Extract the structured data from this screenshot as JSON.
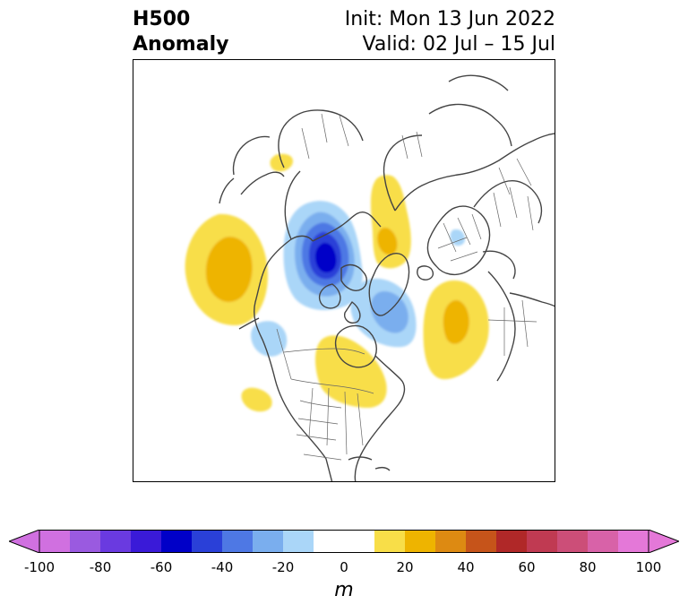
{
  "header": {
    "title_line1": "H500",
    "title_line2": "Anomaly",
    "init_text": "Init: Mon 13 Jun 2022",
    "valid_text": "Valid: 02 Jul – 15 Jul"
  },
  "map": {
    "projection": "polar stereographic, North America centered",
    "anomaly_features": [
      {
        "name": "gulf-of-alaska-ridge",
        "sign": "positive",
        "peak": 30
      },
      {
        "name": "arctic-canada-low",
        "sign": "negative",
        "peak": -60
      },
      {
        "name": "hudson-bay-low",
        "sign": "negative",
        "peak": -30
      },
      {
        "name": "central-canada-great-lakes-ridge",
        "sign": "positive",
        "peak": 20
      },
      {
        "name": "north-atlantic-ridge",
        "sign": "positive",
        "peak": 30
      },
      {
        "name": "western-europe-russia-ridge",
        "sign": "positive",
        "peak": 20
      },
      {
        "name": "pacific-nw-weak-low",
        "sign": "negative",
        "peak": -20
      },
      {
        "name": "southwest-us-weak-ridge",
        "sign": "positive",
        "peak": 20
      },
      {
        "name": "north-africa-weak-ridge",
        "sign": "positive",
        "peak": 20
      },
      {
        "name": "siberia-weak-low",
        "sign": "negative",
        "peak": -20
      }
    ]
  },
  "colorbar": {
    "unit": "m",
    "tick_labels": [
      "-100",
      "-80",
      "-60",
      "-40",
      "-20",
      "0",
      "20",
      "40",
      "60",
      "80",
      "100"
    ],
    "colors": [
      "#d070e0",
      "#9a5ae0",
      "#6a3ae0",
      "#3a1ad8",
      "#0000c8",
      "#2a40d8",
      "#4e78e4",
      "#7aaeee",
      "#aad6f8",
      "#ffffff",
      "#ffffff",
      "#f8de48",
      "#eeb400",
      "#dd8a12",
      "#c6541a",
      "#b02828",
      "#c03a52",
      "#cc4e78",
      "#d862a8",
      "#e478d8"
    ],
    "extend_min_color": "#d070e0",
    "extend_max_color": "#e478d8"
  }
}
